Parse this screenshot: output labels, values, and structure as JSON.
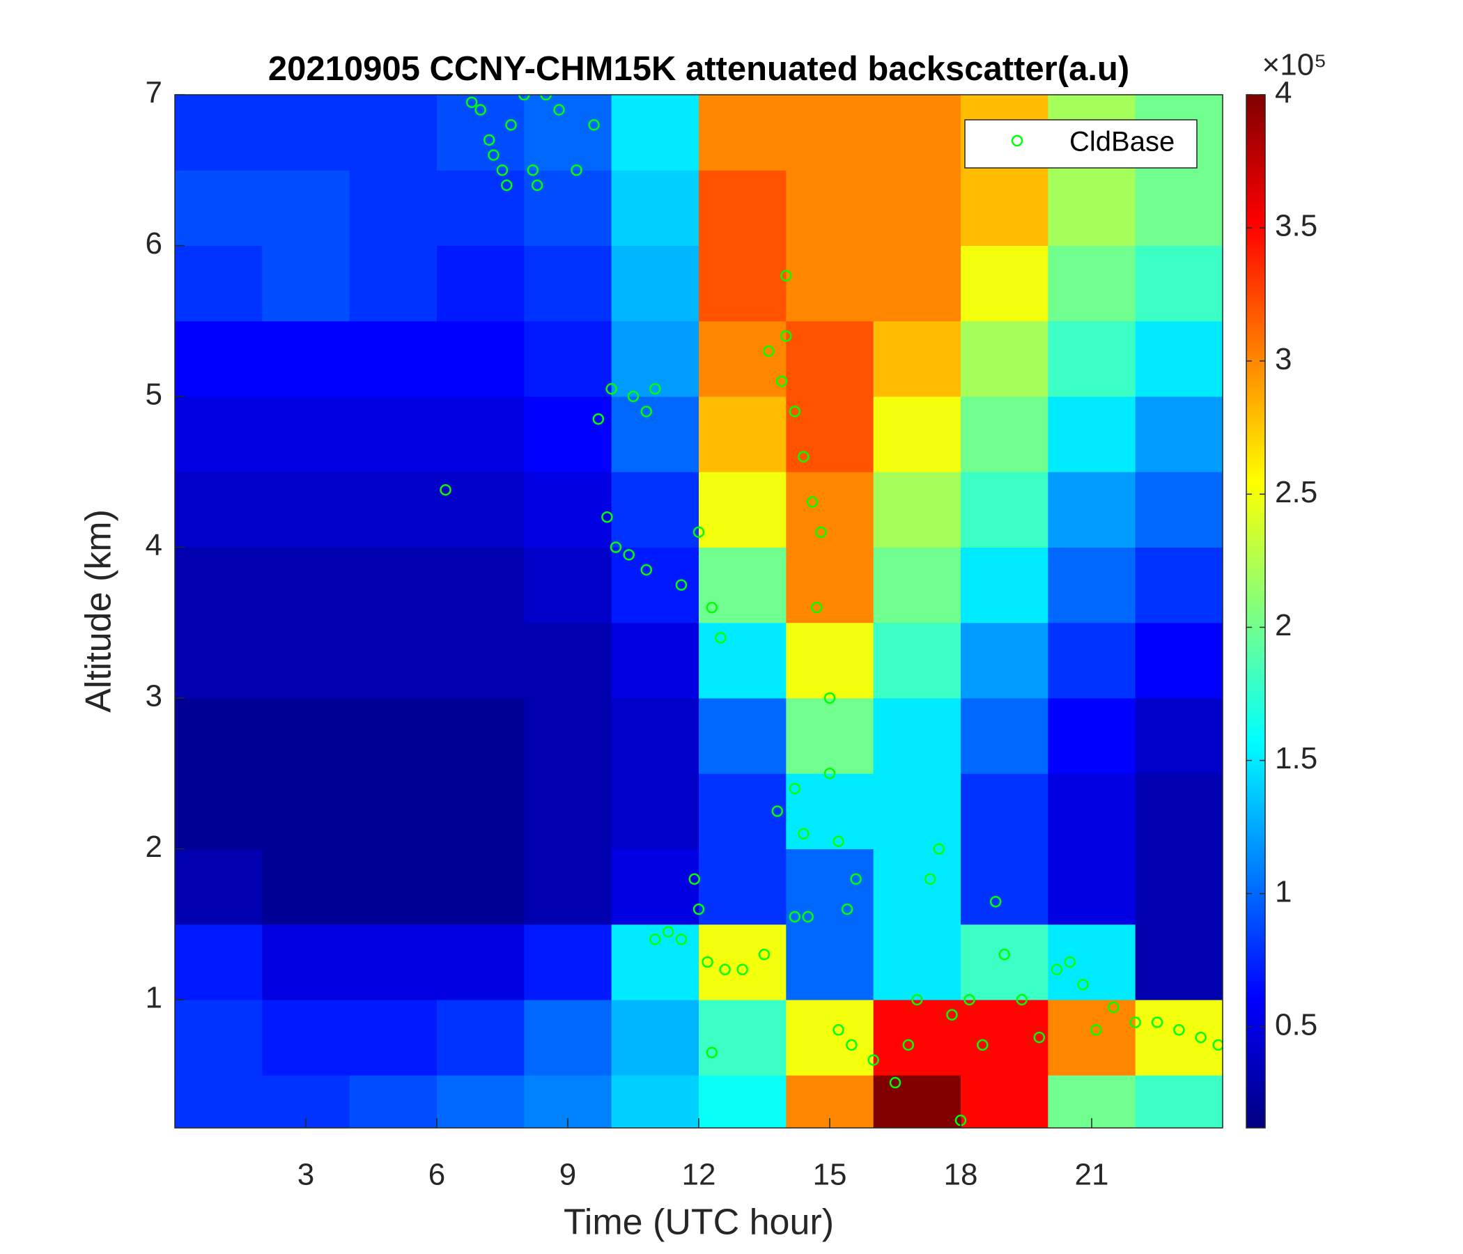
{
  "chart_data": {
    "type": "heatmap",
    "title": "20210905 CCNY-CHM15K attenuated backscatter(a.u)",
    "xlabel": "Time (UTC hour)",
    "ylabel": "Altitude (km)",
    "xlim": [
      0,
      24
    ],
    "ylim": [
      0.15,
      7
    ],
    "xticks": [
      3,
      6,
      9,
      12,
      15,
      18,
      21
    ],
    "yticks": [
      1,
      2,
      3,
      4,
      5,
      6,
      7
    ],
    "colormap": "jet",
    "x_edges": [
      0,
      2,
      4,
      6,
      8,
      10,
      12,
      14,
      16,
      18,
      20,
      22,
      24
    ],
    "y_edges": [
      0.15,
      0.5,
      1.0,
      1.5,
      2.0,
      2.5,
      3.0,
      3.5,
      4.0,
      4.5,
      5.0,
      5.5,
      6.0,
      6.5,
      7.0
    ],
    "z": [
      [
        0.8,
        0.8,
        0.9,
        1.0,
        1.1,
        1.4,
        1.6,
        3.0,
        4.0,
        3.5,
        2.0,
        1.8
      ],
      [
        0.8,
        0.7,
        0.7,
        0.8,
        1.0,
        1.3,
        1.8,
        2.5,
        3.5,
        3.5,
        3.0,
        2.5
      ],
      [
        0.7,
        0.5,
        0.5,
        0.5,
        0.7,
        1.5,
        2.5,
        1.0,
        1.5,
        1.8,
        1.5,
        0.3
      ],
      [
        0.3,
        0.2,
        0.2,
        0.2,
        0.3,
        0.5,
        0.8,
        1.0,
        1.5,
        0.8,
        0.5,
        0.3
      ],
      [
        0.2,
        0.2,
        0.2,
        0.2,
        0.3,
        0.4,
        0.8,
        1.5,
        1.5,
        0.8,
        0.5,
        0.3
      ],
      [
        0.2,
        0.2,
        0.2,
        0.2,
        0.3,
        0.4,
        1.0,
        2.0,
        1.5,
        1.0,
        0.6,
        0.4
      ],
      [
        0.3,
        0.3,
        0.3,
        0.3,
        0.3,
        0.5,
        1.5,
        2.5,
        1.8,
        1.2,
        0.8,
        0.6
      ],
      [
        0.3,
        0.3,
        0.3,
        0.3,
        0.4,
        0.7,
        2.0,
        3.0,
        2.0,
        1.5,
        1.0,
        0.8
      ],
      [
        0.4,
        0.4,
        0.4,
        0.4,
        0.5,
        0.8,
        2.5,
        3.0,
        2.2,
        1.8,
        1.2,
        1.0
      ],
      [
        0.5,
        0.5,
        0.5,
        0.5,
        0.6,
        1.0,
        2.8,
        3.2,
        2.5,
        2.0,
        1.5,
        1.2
      ],
      [
        0.6,
        0.6,
        0.6,
        0.6,
        0.7,
        1.2,
        3.0,
        3.2,
        2.8,
        2.2,
        1.8,
        1.5
      ],
      [
        0.8,
        0.9,
        0.8,
        0.7,
        0.8,
        1.3,
        3.2,
        3.0,
        3.0,
        2.5,
        2.0,
        1.8
      ],
      [
        0.9,
        0.9,
        0.8,
        0.8,
        0.9,
        1.4,
        3.2,
        3.0,
        3.0,
        2.8,
        2.2,
        2.0
      ],
      [
        0.8,
        0.8,
        0.8,
        0.9,
        1.0,
        1.5,
        3.0,
        3.0,
        3.0,
        2.8,
        2.2,
        2.0
      ]
    ],
    "colorbar": {
      "lim": [
        0.12,
        4
      ],
      "ticks": [
        0.5,
        1,
        1.5,
        2,
        2.5,
        3,
        3.5,
        4
      ],
      "multiplier": "×10⁵"
    },
    "legend": "upper right",
    "series": [
      {
        "name": "CldBase",
        "type": "scatter",
        "color": "#00ff00",
        "x": [
          6.8,
          7.0,
          7.2,
          7.3,
          7.5,
          7.6,
          7.7,
          8.0,
          8.2,
          8.3,
          8.5,
          8.8,
          9.2,
          9.6,
          6.2,
          9.7,
          10.0,
          10.5,
          10.8,
          11.0,
          9.9,
          10.1,
          10.4,
          10.8,
          11.6,
          12.3,
          12.5,
          12.0,
          13.6,
          13.9,
          14.0,
          14.2,
          14.4,
          14.6,
          14.8,
          14.7,
          15.0,
          15.0,
          14.2,
          14.4,
          13.8,
          14.0,
          15.2,
          15.4,
          15.6,
          11.0,
          11.3,
          11.6,
          12.0,
          11.9,
          12.2,
          12.6,
          13.0,
          13.5,
          14.2,
          14.5,
          15.2,
          15.5,
          16.0,
          16.5,
          16.8,
          17.0,
          17.3,
          17.5,
          17.8,
          18.2,
          18.5,
          18.8,
          19.0,
          19.4,
          19.8,
          20.2,
          20.5,
          20.8,
          21.1,
          21.5,
          22.0,
          22.5,
          23.0,
          23.5,
          23.9,
          18.0,
          12.3
        ],
        "y": [
          6.95,
          6.9,
          6.7,
          6.6,
          6.5,
          6.4,
          6.8,
          7.0,
          6.5,
          6.4,
          7.0,
          6.9,
          6.5,
          6.8,
          4.38,
          4.85,
          5.05,
          5.0,
          4.9,
          5.05,
          4.2,
          4.0,
          3.95,
          3.85,
          3.75,
          3.6,
          3.4,
          4.1,
          5.3,
          5.1,
          5.4,
          4.9,
          4.6,
          4.3,
          4.1,
          3.6,
          3.0,
          2.5,
          2.4,
          2.1,
          2.25,
          5.8,
          2.05,
          1.6,
          1.8,
          1.4,
          1.45,
          1.4,
          1.6,
          1.8,
          1.25,
          1.2,
          1.2,
          1.3,
          1.55,
          1.55,
          0.8,
          0.7,
          0.6,
          0.45,
          0.7,
          1.0,
          1.8,
          2.0,
          0.9,
          1.0,
          0.7,
          1.65,
          1.3,
          1.0,
          0.75,
          1.2,
          1.25,
          1.1,
          0.8,
          0.95,
          0.85,
          0.85,
          0.8,
          0.75,
          0.7,
          0.2,
          0.65
        ]
      }
    ]
  }
}
